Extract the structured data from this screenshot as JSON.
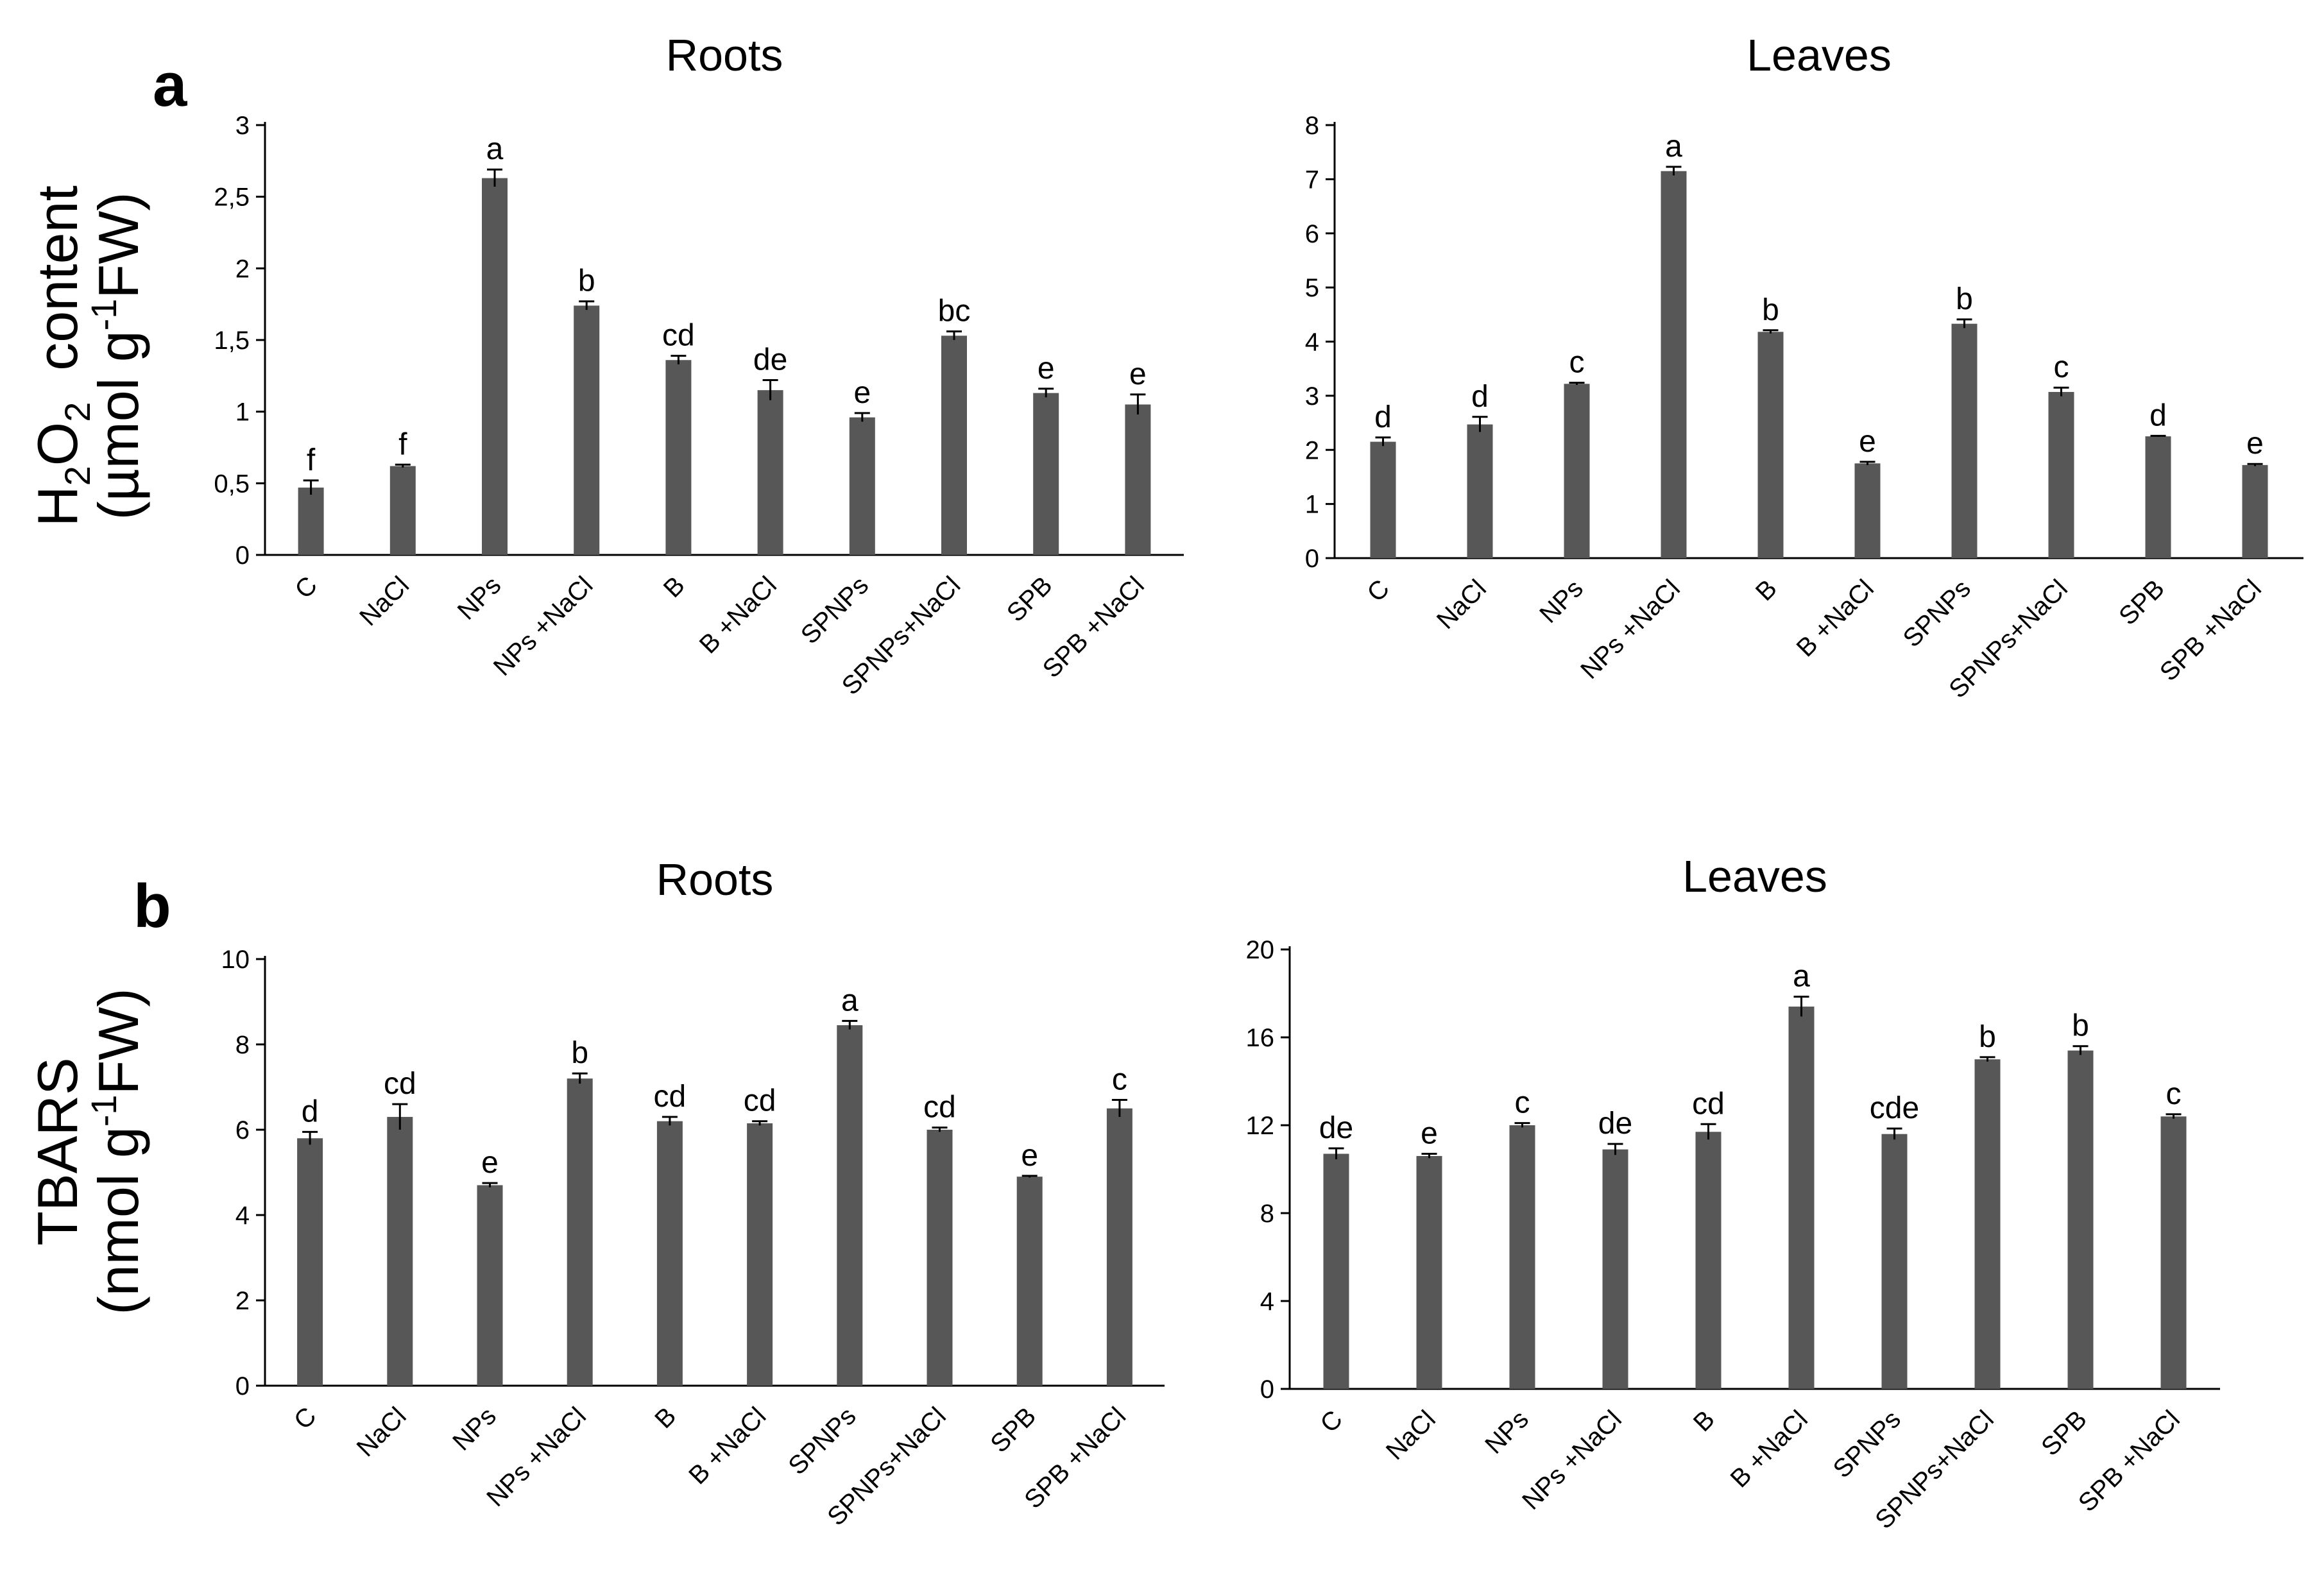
{
  "panels": {
    "a": {
      "label": "a",
      "ylabel_line1_parts": [
        "H",
        "2",
        "O",
        "2",
        "  content"
      ],
      "ylabel_line2_parts": [
        "(µmol g",
        "-1",
        "FW)"
      ]
    },
    "b": {
      "label": "b",
      "ylabel_line1": "TBARS",
      "ylabel_line2_parts": [
        "(nmol g",
        "-1",
        "FW)"
      ]
    }
  },
  "categories": [
    "C",
    "NaCl",
    "NPs",
    "NPs +NaCl",
    "B",
    "B +NaCl",
    "SPNPs",
    "SPNPs+NaCl",
    "SPB",
    "SPB +NaCl"
  ],
  "bar_color": "#575757",
  "chart_data": [
    {
      "id": "a-roots",
      "panel": "a",
      "type": "bar",
      "title": "Roots",
      "categories": [
        "C",
        "NaCl",
        "NPs",
        "NPs +NaCl",
        "B",
        "B +NaCl",
        "SPNPs",
        "SPNPs+NaCl",
        "SPB",
        "SPB +NaCl"
      ],
      "values": [
        0.47,
        0.62,
        2.63,
        1.74,
        1.36,
        1.15,
        0.96,
        1.53,
        1.13,
        1.05
      ],
      "errors": [
        0.05,
        0.01,
        0.06,
        0.03,
        0.03,
        0.07,
        0.03,
        0.03,
        0.03,
        0.07
      ],
      "labels": [
        "f",
        "f",
        "a",
        "b",
        "cd",
        "de",
        "e",
        "bc",
        "e",
        "e"
      ],
      "ylim": [
        0,
        3
      ],
      "yticks": [
        0,
        0.5,
        1,
        1.5,
        2,
        2.5,
        3
      ],
      "ytick_labels": [
        "0",
        "0,5",
        "1",
        "1,5",
        "2",
        "2,5",
        "3"
      ]
    },
    {
      "id": "a-leaves",
      "panel": "a",
      "type": "bar",
      "title": "Leaves",
      "categories": [
        "C",
        "NaCl",
        "NPs",
        "NPs +NaCl",
        "B",
        "B +NaCl",
        "SPNPs",
        "SPNPs+NaCl",
        "SPB",
        "SPB +NaCl"
      ],
      "values": [
        2.15,
        2.47,
        3.22,
        7.15,
        4.18,
        1.75,
        4.33,
        3.07,
        2.25,
        1.72
      ],
      "errors": [
        0.08,
        0.14,
        0.02,
        0.08,
        0.03,
        0.03,
        0.08,
        0.08,
        0.01,
        0.02
      ],
      "labels": [
        "d",
        "d",
        "c",
        "a",
        "b",
        "e",
        "b",
        "c",
        "d",
        "e"
      ],
      "ylim": [
        0,
        8
      ],
      "yticks": [
        0,
        1,
        2,
        3,
        4,
        5,
        6,
        7,
        8
      ],
      "ytick_labels": [
        "0",
        "1",
        "2",
        "3",
        "4",
        "5",
        "6",
        "7",
        "8"
      ]
    },
    {
      "id": "b-roots",
      "panel": "b",
      "type": "bar",
      "title": "Roots",
      "categories": [
        "C",
        "NaCl",
        "NPs",
        "NPs +NaCl",
        "B",
        "B +NaCl",
        "SPNPs",
        "SPNPs+NaCl",
        "SPB",
        "SPB +NaCl"
      ],
      "values": [
        5.8,
        6.3,
        4.7,
        7.2,
        6.2,
        6.15,
        8.45,
        6.0,
        4.9,
        6.5
      ],
      "errors": [
        0.15,
        0.3,
        0.05,
        0.12,
        0.1,
        0.05,
        0.1,
        0.05,
        0.02,
        0.2
      ],
      "labels": [
        "d",
        "cd",
        "e",
        "b",
        "cd",
        "cd",
        "a",
        "cd",
        "e",
        "c"
      ],
      "ylim": [
        0,
        10
      ],
      "yticks": [
        0,
        2,
        4,
        6,
        8,
        10
      ],
      "ytick_labels": [
        "0",
        "2",
        "4",
        "6",
        "8",
        "10"
      ]
    },
    {
      "id": "b-leaves",
      "panel": "b",
      "type": "bar",
      "title": "Leaves",
      "categories": [
        "C",
        "NaCl",
        "NPs",
        "NPs +NaCl",
        "B",
        "B +NaCl",
        "SPNPs",
        "SPNPs+NaCl",
        "SPB",
        "SPB +NaCl"
      ],
      "values": [
        10.7,
        10.6,
        12.0,
        10.9,
        11.7,
        17.4,
        11.6,
        15.0,
        15.4,
        12.4
      ],
      "errors": [
        0.25,
        0.1,
        0.1,
        0.25,
        0.35,
        0.45,
        0.25,
        0.1,
        0.2,
        0.1
      ],
      "labels": [
        "de",
        "e",
        "c",
        "de",
        "cd",
        "a",
        "cde",
        "b",
        "b",
        "c"
      ],
      "ylim": [
        0,
        20
      ],
      "yticks": [
        0,
        4,
        8,
        12,
        16,
        20
      ],
      "ytick_labels": [
        "0",
        "4",
        "8",
        "12",
        "16",
        "20"
      ]
    }
  ]
}
